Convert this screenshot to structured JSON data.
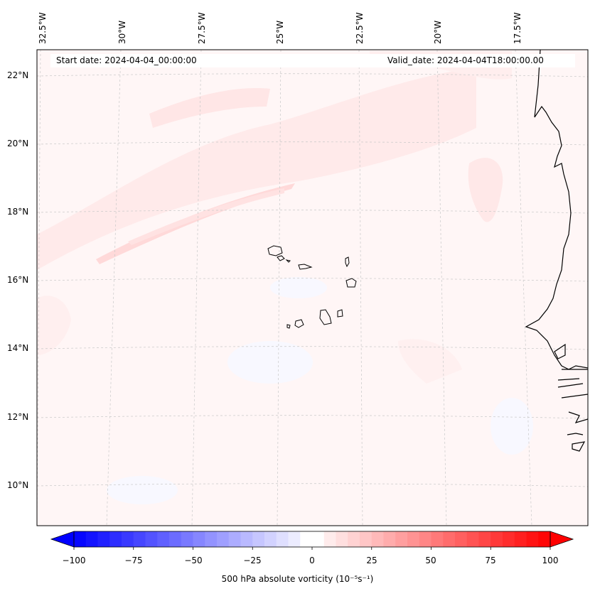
{
  "map": {
    "title_left_label": "Start date:",
    "start_date": "2024-04-04_00:00:00",
    "title_right_label": "Valid_date:",
    "valid_date": "2024-04-04T18:00:00.00",
    "region": "Cape Verde / West African coast",
    "lon_labels": [
      "32.5°W",
      "30°W",
      "27.5°W",
      "25°W",
      "22.5°W",
      "20°W",
      "17.5°W"
    ],
    "lat_labels": [
      "22°N",
      "20°N",
      "18°N",
      "16°N",
      "14°N",
      "12°N",
      "10°N"
    ],
    "colors": {
      "coastline": "#000000",
      "gridline": "#bbbbbb",
      "positive": "#ff0000",
      "negative": "#0000ff",
      "background_field": "#fff5f5"
    }
  },
  "colorbar": {
    "min": -100,
    "max": 100,
    "step": 5,
    "tick_labels": [
      "−100",
      "−75",
      "−50",
      "−25",
      "0",
      "25",
      "50",
      "75",
      "100"
    ],
    "title": "500 hPa absolute vorticity (10⁻⁵s⁻¹)"
  }
}
